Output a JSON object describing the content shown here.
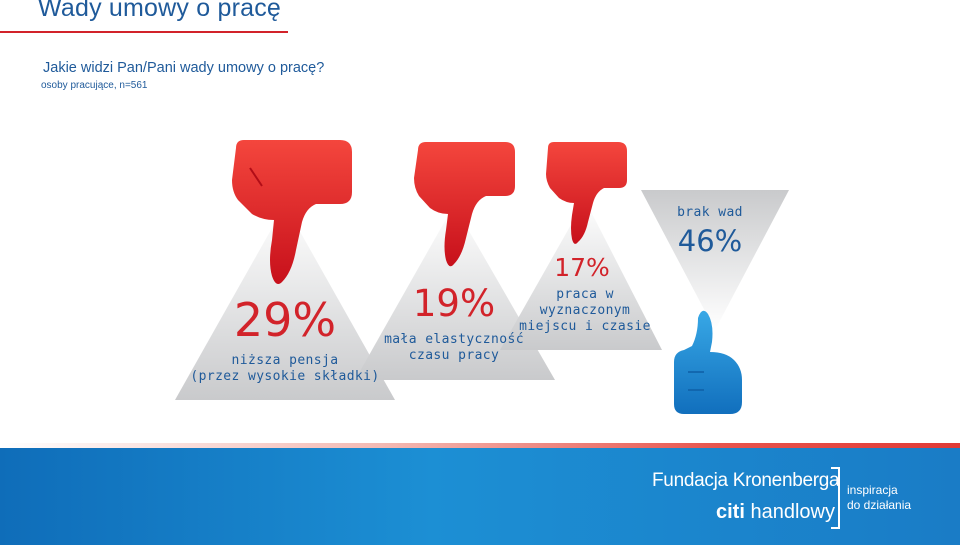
{
  "header": {
    "title": "Wady umowy o pracę",
    "question": "Jakie widzi Pan/Pani wady umowy o pracę?",
    "sample": "osoby pracujące, n=561"
  },
  "items": [
    {
      "percent": "29%",
      "label_line1": "niższa pensja",
      "label_line2": "(przez wysokie składki)",
      "sentiment": "thumbs-down"
    },
    {
      "percent": "19%",
      "label_line1": "mała elastyczność",
      "label_line2": "czasu pracy",
      "sentiment": "thumbs-down"
    },
    {
      "percent": "17%",
      "label_line1": "praca w",
      "label_line2": "wyznaczonym",
      "label_line3": "miejscu i czasie",
      "sentiment": "thumbs-down"
    },
    {
      "percent": "46%",
      "label_line1": "brak wad",
      "sentiment": "thumbs-up"
    }
  ],
  "footer": {
    "foundation": "Fundacja Kronenberga",
    "bank_prefix": "citi",
    "bank_suffix": " handlowy",
    "tagline_line1": "inspiracja",
    "tagline_line2": "do działania"
  },
  "colors": {
    "red": "#d2232a",
    "blue": "#1f5a9a",
    "light_blue": "#1c8fd4"
  }
}
